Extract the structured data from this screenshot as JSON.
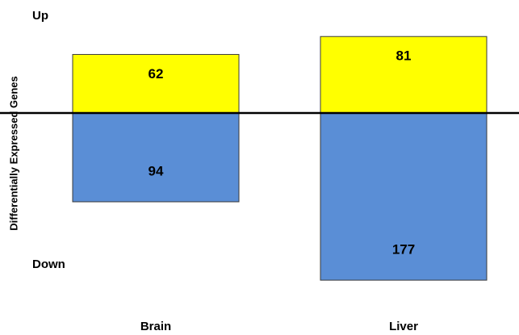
{
  "chart_data": {
    "type": "bar",
    "ylabel": "Differentially Expressed Genes",
    "categories": [
      "Brain",
      "Liver"
    ],
    "series": [
      {
        "name": "Up",
        "color": "#ffff00",
        "values": [
          62,
          81
        ]
      },
      {
        "name": "Down",
        "color": "#5a8ed6",
        "values": [
          94,
          177
        ]
      }
    ]
  }
}
